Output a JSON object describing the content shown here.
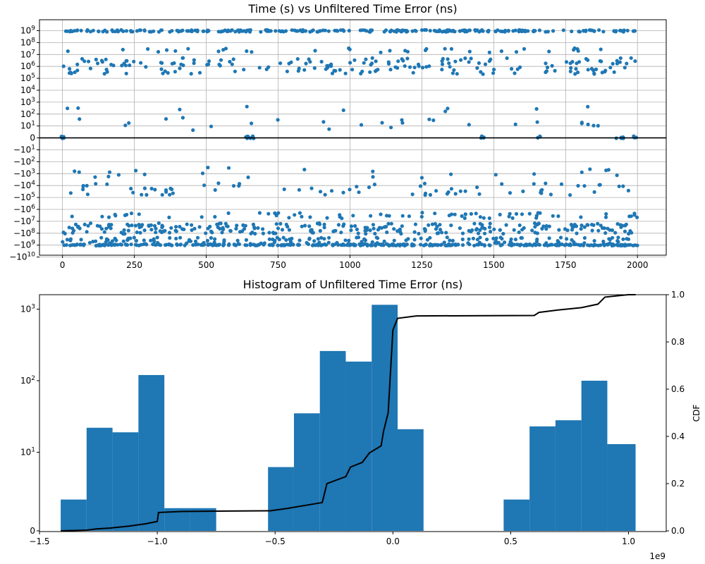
{
  "chart_data": [
    {
      "type": "scatter",
      "title": "Time (s) vs Unfiltered Time Error (ns)",
      "xlabel": "",
      "ylabel": "",
      "xlim": [
        -80,
        2100
      ],
      "x_ticks": [
        0,
        250,
        500,
        750,
        1000,
        1250,
        1500,
        1750,
        2000
      ],
      "x_tick_labels": [
        "0",
        "250",
        "500",
        "750",
        "1000",
        "1250",
        "1500",
        "1750",
        "2000"
      ],
      "y_scale": "symlog",
      "y_ticks": [
        9,
        8,
        7,
        6,
        5,
        4,
        3,
        2,
        1,
        0,
        -1,
        -2,
        -3,
        -4,
        -5,
        -6,
        -7,
        -8,
        -9,
        -10
      ],
      "y_tick_labels": [
        "10^9",
        "10^8",
        "10^7",
        "10^6",
        "10^5",
        "10^4",
        "10^3",
        "10^2",
        "10^1",
        "0",
        "−10^1",
        "−10^2",
        "−10^3",
        "−10^4",
        "−10^5",
        "−10^6",
        "−10^7",
        "−10^8",
        "−10^9",
        "−10^10"
      ],
      "grid": true,
      "reference_line_y": 0,
      "marker_color": "#1f77b4",
      "bands": [
        {
          "level": 8.98,
          "spread": 0.08,
          "count": 260
        },
        {
          "level": 7.35,
          "spread": 0.18,
          "count": 34
        },
        {
          "level": 6.05,
          "spread": 0.7,
          "count": 190
        },
        {
          "level": 2.45,
          "spread": 0.25,
          "count": 9
        },
        {
          "level": 1.2,
          "spread": 0.55,
          "count": 26
        },
        {
          "level": 0.05,
          "spread": 0.1,
          "count": 30
        },
        {
          "level": -2.9,
          "spread": 0.45,
          "count": 24
        },
        {
          "level": -4.3,
          "spread": 0.5,
          "count": 75
        },
        {
          "level": -6.5,
          "spread": 0.25,
          "count": 70
        },
        {
          "level": -7.6,
          "spread": 0.45,
          "count": 260
        },
        {
          "level": -8.7,
          "spread": 0.35,
          "count": 200
        },
        {
          "level": -8.98,
          "spread": 0.06,
          "count": 300
        }
      ],
      "clusters_near_zero_x": [
        0,
        5,
        640,
        660,
        1460,
        1655,
        1930,
        1945,
        1990
      ]
    },
    {
      "type": "bar",
      "title": "Histogram of Unfiltered Time Error (ns)",
      "xlabel": "",
      "ylabel": "",
      "x_scale_note": "1e9",
      "xlim": [
        -1.5,
        1.16
      ],
      "x_ticks": [
        -1.5,
        -1.0,
        -0.5,
        0.0,
        0.5,
        1.0
      ],
      "x_tick_labels": [
        "−1.5",
        "−1.0",
        "−0.5",
        "0.0",
        "0.5",
        "1.0"
      ],
      "y_scale": "symlog",
      "y_ticks": [
        0,
        1,
        2,
        3
      ],
      "y_tick_labels": [
        "0",
        "10^1",
        "10^2",
        "10^3"
      ],
      "bar_color": "#1f77b4",
      "bins": [
        {
          "x0": -1.41,
          "x1": -1.3,
          "count": 1.6
        },
        {
          "x0": -1.3,
          "x1": -1.19,
          "count": 22
        },
        {
          "x0": -1.19,
          "x1": -1.08,
          "count": 19
        },
        {
          "x0": -1.08,
          "x1": -0.97,
          "count": 120
        },
        {
          "x0": -0.97,
          "x1": -0.86,
          "count": 1
        },
        {
          "x0": -0.86,
          "x1": -0.75,
          "count": 1
        },
        {
          "x0": -0.75,
          "x1": -0.64,
          "count": 0
        },
        {
          "x0": -0.64,
          "x1": -0.53,
          "count": 0
        },
        {
          "x0": -0.53,
          "x1": -0.42,
          "count": 6
        },
        {
          "x0": -0.42,
          "x1": -0.31,
          "count": 35
        },
        {
          "x0": -0.31,
          "x1": -0.2,
          "count": 260
        },
        {
          "x0": -0.2,
          "x1": -0.09,
          "count": 185
        },
        {
          "x0": -0.09,
          "x1": 0.02,
          "count": 1150
        },
        {
          "x0": 0.02,
          "x1": 0.13,
          "count": 21
        },
        {
          "x0": 0.13,
          "x1": 0.24,
          "count": 0
        },
        {
          "x0": 0.24,
          "x1": 0.35,
          "count": 0
        },
        {
          "x0": 0.35,
          "x1": 0.46,
          "count": 0
        },
        {
          "x0": 0.47,
          "x1": 0.58,
          "count": 1.6
        },
        {
          "x0": 0.58,
          "x1": 0.69,
          "count": 23
        },
        {
          "x0": 0.69,
          "x1": 0.8,
          "count": 28
        },
        {
          "x0": 0.8,
          "x1": 0.91,
          "count": 100
        },
        {
          "x0": 0.91,
          "x1": 1.03,
          "count": 13
        }
      ],
      "cdf": {
        "label": "CDF",
        "ylim": [
          0,
          1
        ],
        "y_ticks": [
          0.0,
          0.2,
          0.4,
          0.6,
          0.8,
          1.0
        ],
        "y_tick_labels": [
          "0.0",
          "0.2",
          "0.4",
          "0.6",
          "0.8",
          "1.0"
        ],
        "points": [
          [
            -1.41,
            0.0
          ],
          [
            -1.3,
            0.003
          ],
          [
            -1.26,
            0.008
          ],
          [
            -1.2,
            0.012
          ],
          [
            -1.12,
            0.02
          ],
          [
            -1.05,
            0.03
          ],
          [
            -1.0,
            0.04
          ],
          [
            -0.995,
            0.078
          ],
          [
            -0.9,
            0.082
          ],
          [
            -0.7,
            0.084
          ],
          [
            -0.52,
            0.085
          ],
          [
            -0.45,
            0.095
          ],
          [
            -0.3,
            0.12
          ],
          [
            -0.28,
            0.2
          ],
          [
            -0.2,
            0.23
          ],
          [
            -0.18,
            0.27
          ],
          [
            -0.13,
            0.29
          ],
          [
            -0.1,
            0.33
          ],
          [
            -0.05,
            0.36
          ],
          [
            -0.04,
            0.42
          ],
          [
            -0.02,
            0.5
          ],
          [
            0.0,
            0.85
          ],
          [
            0.02,
            0.9
          ],
          [
            0.1,
            0.91
          ],
          [
            0.6,
            0.912
          ],
          [
            0.62,
            0.925
          ],
          [
            0.7,
            0.935
          ],
          [
            0.8,
            0.945
          ],
          [
            0.87,
            0.96
          ],
          [
            0.9,
            0.99
          ],
          [
            1.0,
            1.0
          ],
          [
            1.03,
            1.0
          ]
        ]
      }
    }
  ]
}
